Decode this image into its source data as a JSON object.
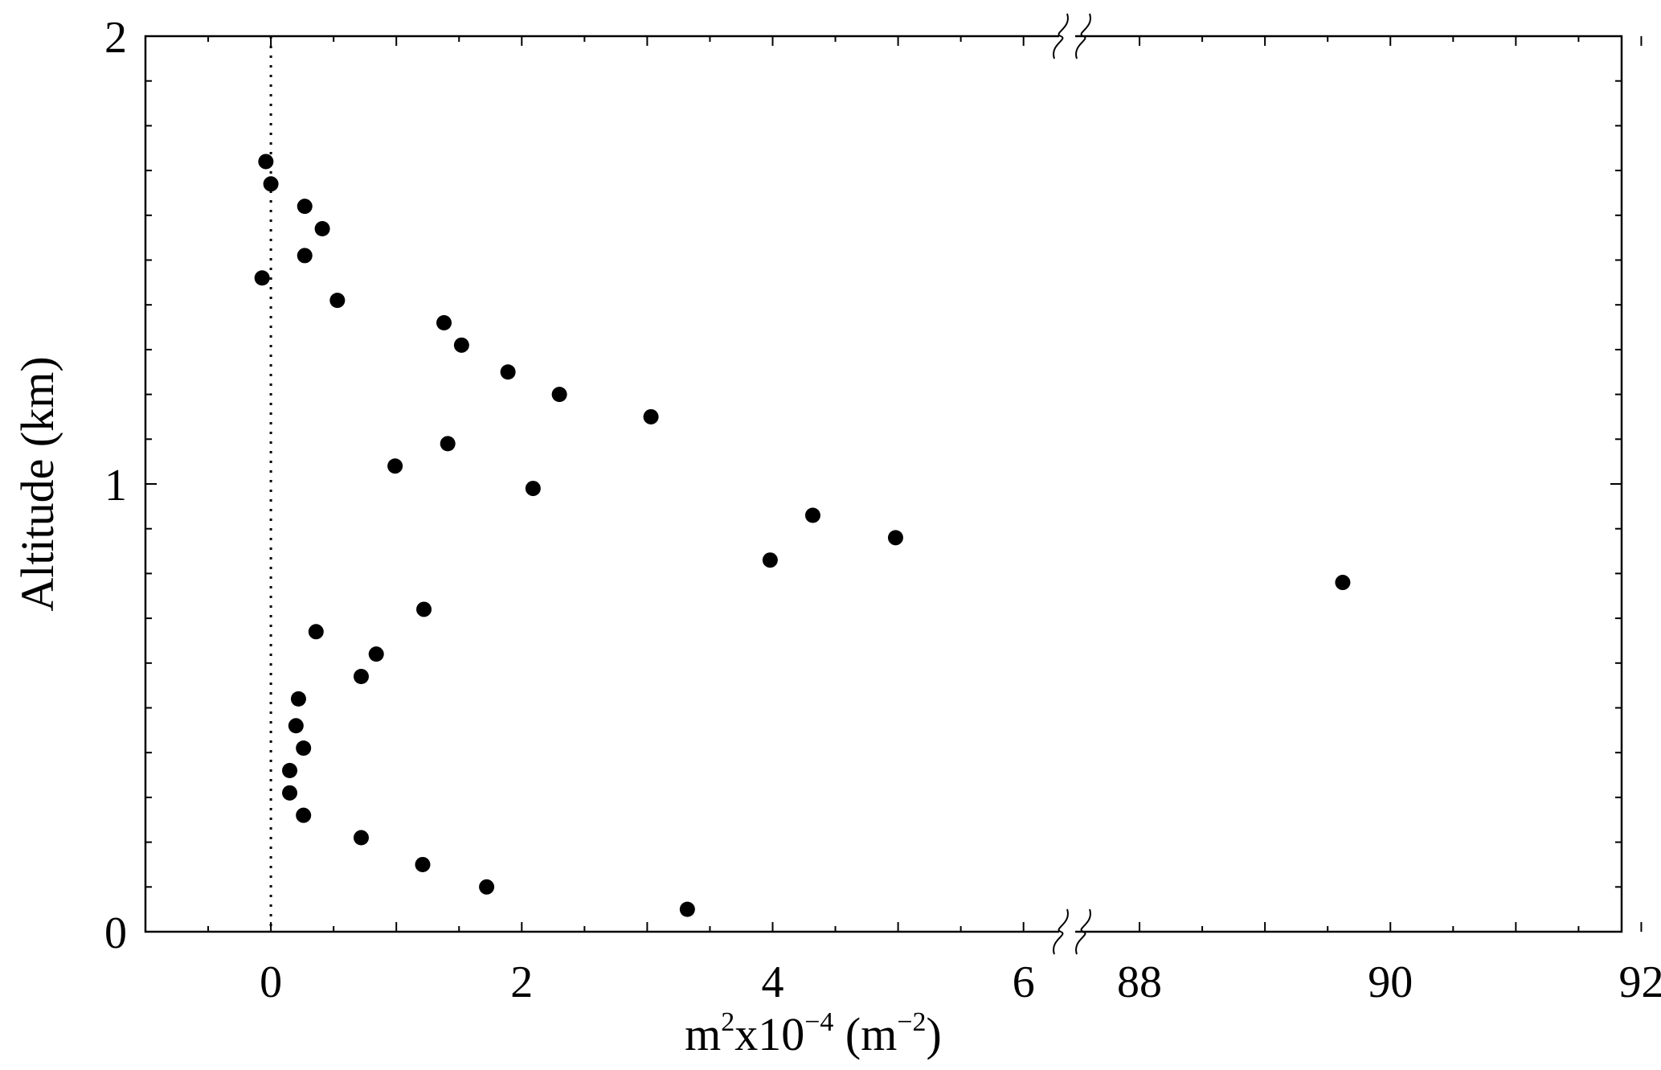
{
  "chart_data": {
    "type": "scatter",
    "title": "",
    "xlabel": {
      "base": "m",
      "base_sup": "2",
      "mid": "x10",
      "mid_sup": "−4",
      "unit_open": " (m",
      "unit_sup": "−2",
      "unit_close": ")"
    },
    "ylabel": "Altitude (km)",
    "ylim": [
      0,
      2
    ],
    "y_ticks": [
      "0",
      "1",
      "2"
    ],
    "x_segments": [
      {
        "xlim": [
          -1,
          6
        ],
        "ticks": [
          "0",
          "2",
          "4",
          "6"
        ]
      },
      {
        "xlim": [
          87.5,
          92
        ],
        "ticks": [
          "88",
          "90",
          "92"
        ]
      }
    ],
    "axis_break": true,
    "reference_line": {
      "x": 0,
      "style": "dotted"
    },
    "grid": false,
    "legend": "none",
    "marker_color": "#000000",
    "points": [
      {
        "x": -0.04,
        "y": 1.72
      },
      {
        "x": 0.0,
        "y": 1.67
      },
      {
        "x": 0.27,
        "y": 1.62
      },
      {
        "x": 0.41,
        "y": 1.57
      },
      {
        "x": 0.27,
        "y": 1.51
      },
      {
        "x": -0.07,
        "y": 1.46
      },
      {
        "x": 0.53,
        "y": 1.41
      },
      {
        "x": 1.38,
        "y": 1.36
      },
      {
        "x": 1.52,
        "y": 1.31
      },
      {
        "x": 1.89,
        "y": 1.25
      },
      {
        "x": 2.3,
        "y": 1.2
      },
      {
        "x": 3.03,
        "y": 1.15
      },
      {
        "x": 1.41,
        "y": 1.09
      },
      {
        "x": 0.99,
        "y": 1.04
      },
      {
        "x": 2.09,
        "y": 0.99
      },
      {
        "x": 4.32,
        "y": 0.93
      },
      {
        "x": 4.98,
        "y": 0.88
      },
      {
        "x": 3.98,
        "y": 0.83
      },
      {
        "x": 89.62,
        "y": 0.78
      },
      {
        "x": 1.22,
        "y": 0.72
      },
      {
        "x": 0.36,
        "y": 0.67
      },
      {
        "x": 0.84,
        "y": 0.62
      },
      {
        "x": 0.72,
        "y": 0.57
      },
      {
        "x": 0.22,
        "y": 0.52
      },
      {
        "x": 0.2,
        "y": 0.46
      },
      {
        "x": 0.26,
        "y": 0.41
      },
      {
        "x": 0.15,
        "y": 0.36
      },
      {
        "x": 0.15,
        "y": 0.31
      },
      {
        "x": 0.26,
        "y": 0.26
      },
      {
        "x": 0.72,
        "y": 0.21
      },
      {
        "x": 1.21,
        "y": 0.15
      },
      {
        "x": 1.72,
        "y": 0.1
      },
      {
        "x": 3.32,
        "y": 0.05
      }
    ]
  }
}
